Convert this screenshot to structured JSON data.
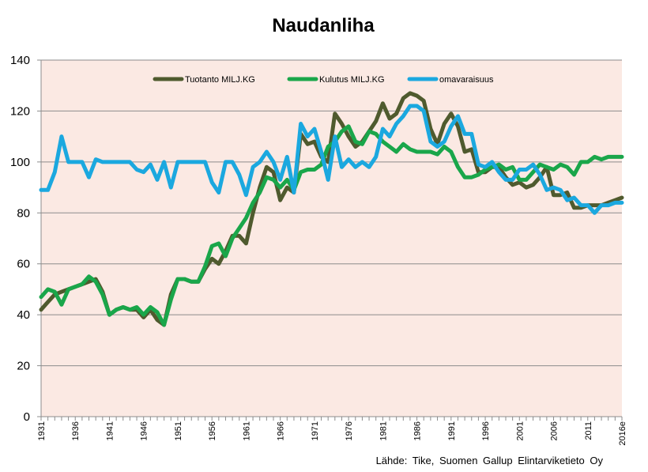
{
  "chart_data": {
    "type": "line",
    "title": "Naudanliha",
    "xlabel": "",
    "ylabel": "",
    "ylim": [
      0,
      140
    ],
    "yticks": [
      0,
      20,
      40,
      60,
      80,
      100,
      120,
      140
    ],
    "x": [
      1931,
      1932,
      1933,
      1934,
      1935,
      1936,
      1937,
      1938,
      1939,
      1940,
      1941,
      1942,
      1943,
      1944,
      1945,
      1946,
      1947,
      1948,
      1949,
      1950,
      1951,
      1952,
      1953,
      1954,
      1955,
      1956,
      1957,
      1958,
      1959,
      1960,
      1961,
      1962,
      1963,
      1964,
      1965,
      1966,
      1967,
      1968,
      1969,
      1970,
      1971,
      1972,
      1973,
      1974,
      1975,
      1976,
      1977,
      1978,
      1979,
      1980,
      1981,
      1982,
      1983,
      1984,
      1985,
      1986,
      1987,
      1988,
      1989,
      1990,
      1991,
      1992,
      1993,
      1994,
      1995,
      1996,
      1997,
      1998,
      1999,
      2000,
      2001,
      2002,
      2003,
      2004,
      2005,
      2006,
      2007,
      2008,
      2009,
      2010,
      2011,
      2012,
      2013,
      2014,
      2015,
      2016
    ],
    "xtick_labels": [
      "1931",
      "1936",
      "1941",
      "1946",
      "1951",
      "1956",
      "1961",
      "1966",
      "1971",
      "1976",
      "1981",
      "1986",
      "1991",
      "1996",
      "2001",
      "2006",
      "2011",
      "2016e"
    ],
    "xtick_years": [
      1931,
      1936,
      1941,
      1946,
      1951,
      1956,
      1961,
      1966,
      1971,
      1976,
      1981,
      1986,
      1991,
      1996,
      2001,
      2006,
      2011,
      2016
    ],
    "grid": "horizontal",
    "legend_position": "top-center",
    "series": [
      {
        "name": "Tuotanto MILJ.KG",
        "color": "#4f5a2e",
        "values": [
          42,
          45,
          48,
          49,
          50,
          51,
          52,
          53,
          54,
          49,
          40,
          42,
          43,
          42,
          42,
          39,
          42,
          38,
          36,
          48,
          54,
          54,
          53,
          53,
          58,
          62,
          60,
          65,
          71,
          71,
          68,
          80,
          90,
          98,
          96,
          85,
          90,
          88,
          111,
          107,
          108,
          102,
          100,
          119,
          115,
          110,
          106,
          108,
          112,
          116,
          123,
          117,
          119,
          125,
          127,
          126,
          124,
          113,
          107,
          115,
          119,
          114,
          104,
          105,
          96,
          96,
          98,
          98,
          94,
          91,
          92,
          90,
          91,
          94,
          98,
          87,
          87,
          88,
          82,
          82,
          83,
          83,
          83,
          84,
          85,
          86
        ],
        "id": "production"
      },
      {
        "name": "Kulutus MILJ.KG",
        "color": "#1aa64a",
        "values": [
          47,
          50,
          49,
          44,
          50,
          51,
          52,
          55,
          53,
          48,
          40,
          42,
          43,
          42,
          43,
          40,
          43,
          41,
          36,
          46,
          54,
          54,
          53,
          53,
          59,
          67,
          68,
          63,
          70,
          74,
          78,
          84,
          88,
          94,
          93,
          90,
          93,
          89,
          96,
          97,
          97,
          99,
          106,
          108,
          112,
          114,
          108,
          107,
          112,
          111,
          108,
          106,
          104,
          107,
          105,
          104,
          104,
          104,
          103,
          106,
          104,
          98,
          94,
          94,
          95,
          97,
          98,
          99,
          97,
          98,
          93,
          93,
          96,
          99,
          98,
          97,
          99,
          98,
          95,
          100,
          100,
          102,
          101,
          102,
          102,
          102
        ],
        "id": "consumption"
      },
      {
        "name": "omavaraisuus",
        "color": "#1ba8df",
        "values": [
          89,
          89,
          96,
          110,
          100,
          100,
          100,
          94,
          101,
          100,
          100,
          100,
          100,
          100,
          97,
          96,
          99,
          93,
          100,
          90,
          100,
          100,
          100,
          100,
          100,
          92,
          88,
          100,
          100,
          95,
          87,
          98,
          100,
          104,
          100,
          93,
          102,
          88,
          115,
          110,
          113,
          104,
          93,
          110,
          98,
          101,
          98,
          100,
          98,
          102,
          113,
          110,
          115,
          118,
          122,
          122,
          120,
          108,
          106,
          108,
          114,
          118,
          111,
          111,
          99,
          98,
          100,
          96,
          93,
          93,
          97,
          97,
          99,
          95,
          89,
          90,
          89,
          85,
          86,
          83,
          83,
          80,
          83,
          83,
          84,
          84
        ],
        "id": "selfsufficiency"
      }
    ]
  },
  "source_note": "Lähde: Tike, Suomen Gallup Elintarviketieto Oy"
}
